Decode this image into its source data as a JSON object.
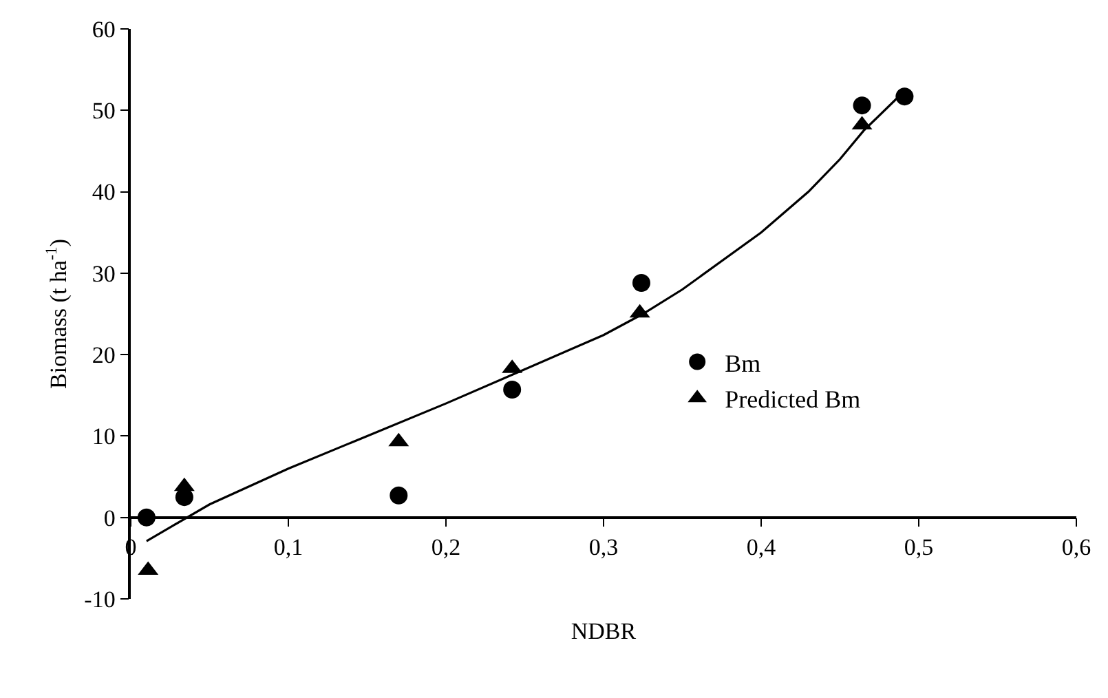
{
  "chart_data": {
    "type": "scatter",
    "xlabel": "NDBR",
    "ylabel": "Biomass (t ha$^{-1}$)",
    "xlim": [
      0,
      0.6
    ],
    "xticks": [
      {
        "value": 0,
        "label": "0"
      },
      {
        "value": 0.1,
        "label": "0,1"
      },
      {
        "value": 0.2,
        "label": "0,2"
      },
      {
        "value": 0.3,
        "label": "0,3"
      },
      {
        "value": 0.4,
        "label": "0,4"
      },
      {
        "value": 0.5,
        "label": "0,5"
      },
      {
        "value": 0.6,
        "label": "0,6"
      }
    ],
    "ylim": [
      -10,
      60
    ],
    "yticks": [
      -10,
      0,
      10,
      20,
      30,
      40,
      50,
      60
    ],
    "grid": false,
    "legend": "center right",
    "series": [
      {
        "name": "Bm",
        "color": "#000000",
        "marker": "circle",
        "x": [
          0.01,
          0.034,
          0.17,
          0.242,
          0.324,
          0.464,
          0.491
        ],
        "values": [
          0,
          2.5,
          2.7,
          15.7,
          28.8,
          50.6,
          51.7
        ]
      },
      {
        "name": "Predicted Bm",
        "color": "#000000",
        "marker": "triangle",
        "x": [
          0.011,
          0.034,
          0.17,
          0.242,
          0.323,
          0.464
        ],
        "values": [
          -6.5,
          3.8,
          9.3,
          18.3,
          25.1,
          48.2
        ]
      },
      {
        "type": "line",
        "color": "#000000",
        "marker": "none",
        "line_style": "solid",
        "x": [
          0.01,
          0.05,
          0.1,
          0.15,
          0.2,
          0.25,
          0.3,
          0.325,
          0.35,
          0.4,
          0.43,
          0.45,
          0.465,
          0.49
        ],
        "values": [
          -2.9,
          1.6,
          6.0,
          10.0,
          14.0,
          18.2,
          22.4,
          25.0,
          28.0,
          35.0,
          40.0,
          44.0,
          47.5,
          52.2
        ]
      }
    ]
  }
}
